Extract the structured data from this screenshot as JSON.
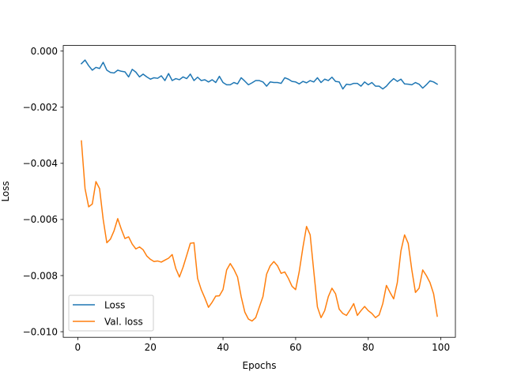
{
  "chart_data": {
    "type": "line",
    "title": "",
    "xlabel": "Epochs",
    "ylabel": "Loss",
    "xlim": [
      -4,
      104
    ],
    "ylim": [
      -0.0102,
      0.0002
    ],
    "xticks": [
      0,
      20,
      40,
      60,
      80,
      100
    ],
    "yticks": [
      0.0,
      -0.002,
      -0.004,
      -0.006,
      -0.008,
      -0.01
    ],
    "xtick_labels": [
      "0",
      "20",
      "40",
      "60",
      "80",
      "100"
    ],
    "ytick_labels": [
      "0.000",
      "−0.002",
      "−0.004",
      "−0.006",
      "−0.008",
      "−0.010"
    ],
    "grid": false,
    "legend_position": "lower-left",
    "x": [
      1,
      2,
      3,
      4,
      5,
      6,
      7,
      8,
      9,
      10,
      11,
      12,
      13,
      14,
      15,
      16,
      17,
      18,
      19,
      20,
      21,
      22,
      23,
      24,
      25,
      26,
      27,
      28,
      29,
      30,
      31,
      32,
      33,
      34,
      35,
      36,
      37,
      38,
      39,
      40,
      41,
      42,
      43,
      44,
      45,
      46,
      47,
      48,
      49,
      50,
      51,
      52,
      53,
      54,
      55,
      56,
      57,
      58,
      59,
      60,
      61,
      62,
      63,
      64,
      65,
      66,
      67,
      68,
      69,
      70,
      71,
      72,
      73,
      74,
      75,
      76,
      77,
      78,
      79,
      80,
      81,
      82,
      83,
      84,
      85,
      86,
      87,
      88,
      89,
      90,
      91,
      92,
      93,
      94,
      95,
      96,
      97,
      98,
      99
    ],
    "series": [
      {
        "name": "Loss",
        "color": "#1f77b4",
        "values": [
          -0.00045,
          -0.00032,
          -0.00052,
          -0.00068,
          -0.00058,
          -0.00062,
          -0.0004,
          -0.00068,
          -0.00076,
          -0.00078,
          -0.00068,
          -0.00072,
          -0.00074,
          -0.00092,
          -0.00065,
          -0.00075,
          -0.00092,
          -0.00082,
          -0.00092,
          -0.001,
          -0.00095,
          -0.00097,
          -0.00088,
          -0.00105,
          -0.0008,
          -0.00105,
          -0.00098,
          -0.00102,
          -0.00092,
          -0.00098,
          -0.00082,
          -0.00105,
          -0.00093,
          -0.00105,
          -0.00102,
          -0.0011,
          -0.00102,
          -0.00112,
          -0.0009,
          -0.00112,
          -0.0012,
          -0.0012,
          -0.00112,
          -0.00117,
          -0.00095,
          -0.00107,
          -0.0012,
          -0.00113,
          -0.00105,
          -0.00105,
          -0.0011,
          -0.00125,
          -0.0011,
          -0.00112,
          -0.00112,
          -0.00115,
          -0.00095,
          -0.001,
          -0.00108,
          -0.0011,
          -0.00117,
          -0.00108,
          -0.00113,
          -0.00105,
          -0.0011,
          -0.00095,
          -0.00112,
          -0.001,
          -0.00105,
          -0.00093,
          -0.00108,
          -0.0011,
          -0.00135,
          -0.00118,
          -0.0012,
          -0.00115,
          -0.00115,
          -0.00125,
          -0.0011,
          -0.0012,
          -0.00112,
          -0.00125,
          -0.00125,
          -0.00135,
          -0.00125,
          -0.0011,
          -0.00098,
          -0.00108,
          -0.001,
          -0.00117,
          -0.00118,
          -0.0012,
          -0.00112,
          -0.00118,
          -0.00132,
          -0.0012,
          -0.00106,
          -0.0011,
          -0.00118
        ]
      },
      {
        "name": "Val. loss",
        "color": "#ff7f0e",
        "values": [
          -0.0032,
          -0.0049,
          -0.00555,
          -0.00545,
          -0.00465,
          -0.0049,
          -0.006,
          -0.00683,
          -0.0067,
          -0.0064,
          -0.00597,
          -0.00635,
          -0.00668,
          -0.00662,
          -0.00688,
          -0.00705,
          -0.00698,
          -0.00708,
          -0.0073,
          -0.00742,
          -0.0075,
          -0.00748,
          -0.00752,
          -0.00745,
          -0.00738,
          -0.00725,
          -0.00775,
          -0.00805,
          -0.0077,
          -0.00728,
          -0.00685,
          -0.00683,
          -0.0081,
          -0.0085,
          -0.0088,
          -0.00913,
          -0.00895,
          -0.00873,
          -0.00872,
          -0.0085,
          -0.0078,
          -0.00757,
          -0.00778,
          -0.00805,
          -0.00875,
          -0.0093,
          -0.00955,
          -0.00962,
          -0.0095,
          -0.00912,
          -0.00875,
          -0.00795,
          -0.00765,
          -0.0075,
          -0.00765,
          -0.00792,
          -0.00787,
          -0.0081,
          -0.00838,
          -0.0085,
          -0.00785,
          -0.007,
          -0.00625,
          -0.00655,
          -0.00785,
          -0.00912,
          -0.0095,
          -0.00925,
          -0.00875,
          -0.00845,
          -0.00865,
          -0.0092,
          -0.00935,
          -0.00942,
          -0.00922,
          -0.009,
          -0.00942,
          -0.00925,
          -0.0091,
          -0.00925,
          -0.00935,
          -0.0095,
          -0.0094,
          -0.009,
          -0.00835,
          -0.0086,
          -0.00883,
          -0.00825,
          -0.00712,
          -0.00655,
          -0.00685,
          -0.0078,
          -0.0086,
          -0.00845,
          -0.0078,
          -0.008,
          -0.00825,
          -0.00865,
          -0.00945
        ]
      }
    ]
  }
}
